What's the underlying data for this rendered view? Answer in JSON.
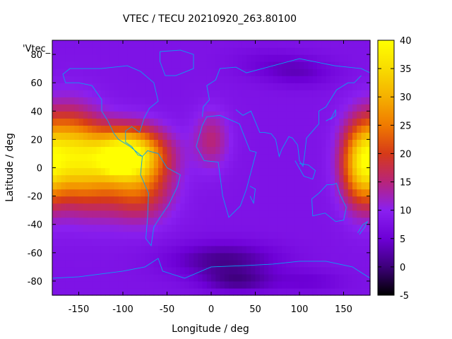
{
  "chart_data": {
    "type": "heatmap",
    "title": "VTEC / TECU 20210920_263.80100",
    "series_key": "'Vtec_",
    "xlabel": "Longitude / deg",
    "ylabel": "Latitude / deg",
    "xlim": [
      -180,
      180
    ],
    "ylim": [
      -90,
      90
    ],
    "x_ticks": [
      -150,
      -100,
      -50,
      0,
      50,
      100,
      150
    ],
    "y_ticks": [
      -80,
      -60,
      -40,
      -20,
      0,
      20,
      40,
      60,
      80
    ],
    "colorbar": {
      "range": [
        -5,
        40
      ],
      "ticks": [
        -5,
        0,
        5,
        10,
        15,
        20,
        25,
        30,
        35,
        40
      ],
      "colors": [
        "#000000",
        "#3d007a",
        "#6d00d6",
        "#8a20f0",
        "#b8247a",
        "#d63a18",
        "#f07a00",
        "#f5b000",
        "#f8dc00",
        "#ffff00"
      ]
    },
    "grid": false,
    "cell_deg": [
      5,
      5
    ],
    "value_description": "Vertical total electron content in TECU on a longitude/latitude grid with coastline overlay",
    "background_vtec": 8,
    "vtec_field": [
      {
        "lon": -160,
        "lat": 12,
        "peak": 22,
        "lon_width": 35,
        "lat_width": 28
      },
      {
        "lon": -95,
        "lat": 10,
        "peak": 32,
        "lon_width": 40,
        "lat_width": 18
      },
      {
        "lon": -105,
        "lat": 2,
        "peak": 6,
        "lon_width": 15,
        "lat_width": 6
      },
      {
        "lon": -80,
        "lat": -15,
        "peak": 12,
        "lon_width": 35,
        "lat_width": 22
      },
      {
        "lon": -135,
        "lat": -10,
        "peak": 10,
        "lon_width": 40,
        "lat_width": 25
      },
      {
        "lon": 170,
        "lat": 2,
        "peak": 20,
        "lon_width": 22,
        "lat_width": 28
      },
      {
        "lon": 0,
        "lat": 20,
        "peak": 7,
        "lon_width": 20,
        "lat_width": 20
      },
      {
        "lon": 15,
        "lat": -65,
        "peak": -7,
        "lon_width": 60,
        "lat_width": 12
      },
      {
        "lon": 30,
        "lat": -80,
        "peak": -6,
        "lon_width": 40,
        "lat_width": 8
      },
      {
        "lon": 100,
        "lat": 68,
        "peak": -4,
        "lon_width": 40,
        "lat_width": 10
      },
      {
        "lon": 60,
        "lat": 75,
        "peak": -2,
        "lon_width": 40,
        "lat_width": 10
      },
      {
        "lon": 110,
        "lat": -80,
        "peak": -3,
        "lon_width": 40,
        "lat_width": 8
      }
    ]
  }
}
